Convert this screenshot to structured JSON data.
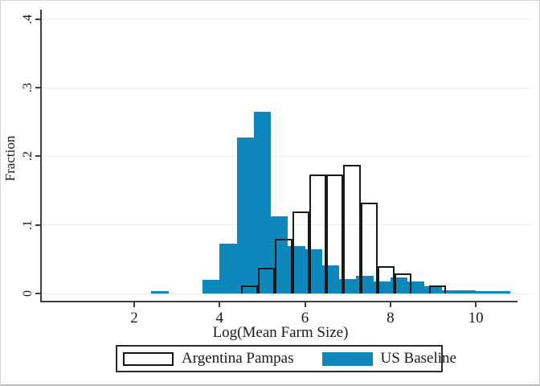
{
  "figure": {
    "ylabel": "Fraction",
    "xlabel": "Log(Mean Farm Size)",
    "legend": {
      "argentina_label": "Argentina Pampas",
      "us_label": "US Baseline"
    }
  },
  "chart_data": {
    "type": "bar",
    "subtype": "overlaid-histogram",
    "title": "",
    "xlabel": "Log(Mean Farm Size)",
    "ylabel": "Fraction",
    "xlim": [
      0.8,
      11.0
    ],
    "ylim": [
      0,
      0.4
    ],
    "x_ticks": [
      2,
      4,
      6,
      8,
      10
    ],
    "x_tick_labels": [
      "2",
      "4",
      "6",
      "8",
      "10"
    ],
    "y_ticks": [
      0,
      0.1,
      0.2,
      0.3,
      0.4
    ],
    "y_tick_labels": [
      "0",
      ".1",
      ".2",
      ".3",
      ".4"
    ],
    "grid": "horizontal-light",
    "legend_position": "bottom-outside",
    "bin_width": 0.4,
    "colors": {
      "us_fill": "#0e87bd",
      "argentina_outline": "#191919",
      "axis": "#3f3f3f",
      "gridline": "#ececec"
    },
    "series": [
      {
        "name": "US Baseline",
        "style": "filled",
        "color": "#0e87bd",
        "bins": [
          {
            "x0": 2.4,
            "h": 0.003
          },
          {
            "x0": 3.6,
            "h": 0.02
          },
          {
            "x0": 4.0,
            "h": 0.073
          },
          {
            "x0": 4.4,
            "h": 0.227
          },
          {
            "x0": 4.8,
            "h": 0.265
          },
          {
            "x0": 5.2,
            "h": 0.112
          },
          {
            "x0": 5.6,
            "h": 0.069
          },
          {
            "x0": 6.0,
            "h": 0.065
          },
          {
            "x0": 6.4,
            "h": 0.041
          },
          {
            "x0": 6.8,
            "h": 0.021
          },
          {
            "x0": 7.2,
            "h": 0.026
          },
          {
            "x0": 7.6,
            "h": 0.018
          },
          {
            "x0": 8.0,
            "h": 0.024
          },
          {
            "x0": 8.4,
            "h": 0.018
          },
          {
            "x0": 8.8,
            "h": 0.011
          },
          {
            "x0": 9.2,
            "h": 0.005
          },
          {
            "x0": 9.6,
            "h": 0.005
          },
          {
            "x0": 10.0,
            "h": 0.003
          },
          {
            "x0": 10.4,
            "h": 0.003
          }
        ]
      },
      {
        "name": "Argentina Pampas",
        "style": "outline",
        "color": "#191919",
        "bins": [
          {
            "x0": 4.5,
            "h": 0.012
          },
          {
            "x0": 4.9,
            "h": 0.037
          },
          {
            "x0": 5.3,
            "h": 0.08
          },
          {
            "x0": 5.7,
            "h": 0.119
          },
          {
            "x0": 6.1,
            "h": 0.173
          },
          {
            "x0": 6.5,
            "h": 0.173
          },
          {
            "x0": 6.9,
            "h": 0.187
          },
          {
            "x0": 7.3,
            "h": 0.132
          },
          {
            "x0": 7.7,
            "h": 0.04
          },
          {
            "x0": 8.1,
            "h": 0.029
          },
          {
            "x0": 8.9,
            "h": 0.012
          }
        ]
      }
    ]
  }
}
